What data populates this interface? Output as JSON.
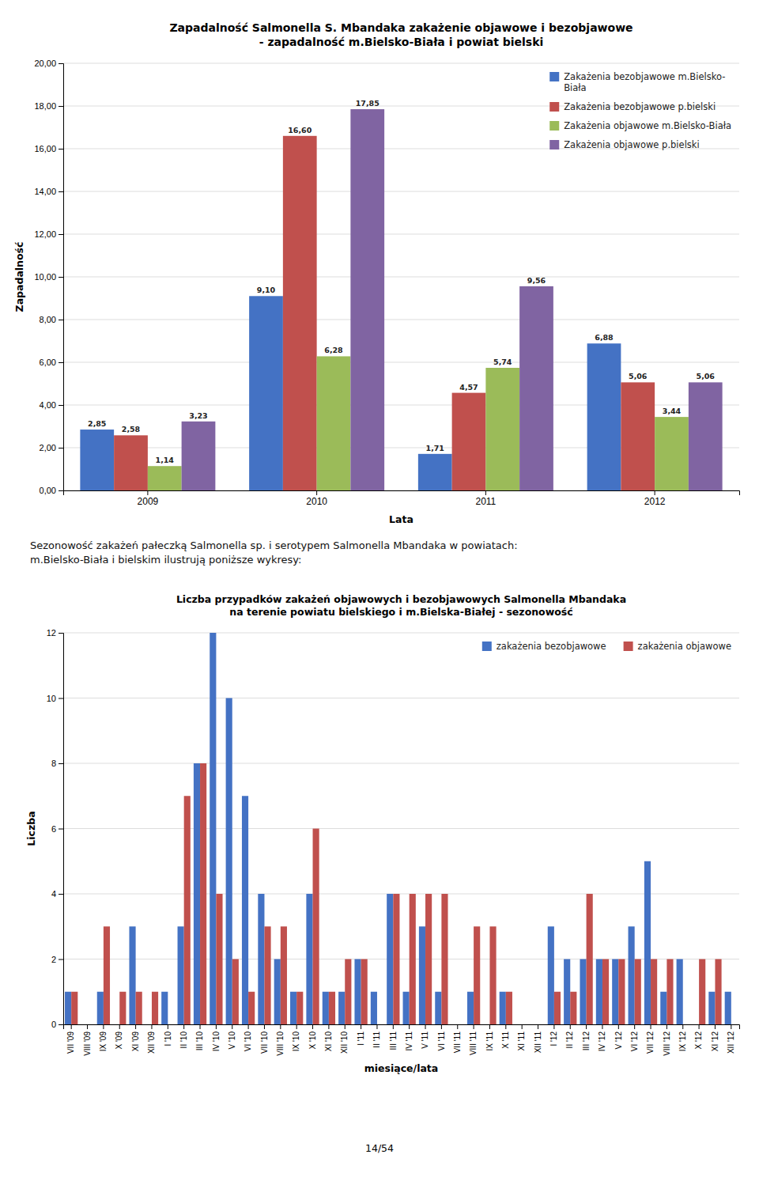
{
  "chart_data": [
    {
      "type": "bar",
      "title": "Zapadalność Salmonella S. Mbandaka zakażenie objawowe i bezobjawowe\n- zapadalność m.Bielsko-Biała i powiat bielski",
      "xlabel": "Lata",
      "ylabel": "Zapadalność",
      "categories": [
        "2009",
        "2010",
        "2011",
        "2012"
      ],
      "series": [
        {
          "name": "Zakażenia bezobjawowe m.Bielsko-\nBiała",
          "color": "#4472C4",
          "values": [
            2.85,
            9.1,
            1.71,
            6.88
          ],
          "value_labels": [
            "2,85",
            "9,10",
            "1,71",
            "6,88"
          ]
        },
        {
          "name": "Zakażenia bezobjawowe p.bielski",
          "color": "#C0504D",
          "values": [
            2.58,
            16.6,
            4.57,
            5.06
          ],
          "value_labels": [
            "2,58",
            "16,60",
            "4,57",
            "5,06"
          ]
        },
        {
          "name": "Zakażenia objawowe m.Bielsko-Biała",
          "color": "#9BBB59",
          "values": [
            1.14,
            6.28,
            5.74,
            3.44
          ],
          "value_labels": [
            "1,14",
            "6,28",
            "5,74",
            "3,44"
          ]
        },
        {
          "name": "Zakażenia objawowe p.bielski",
          "color": "#8064A2",
          "values": [
            3.23,
            17.85,
            9.56,
            5.06
          ],
          "value_labels": [
            "3,23",
            "17,85",
            "9,56",
            "5,06"
          ]
        }
      ],
      "ylim": [
        0,
        20
      ],
      "yticks": [
        {
          "value": 0,
          "label": "0,00"
        },
        {
          "value": 2,
          "label": "2,00"
        },
        {
          "value": 4,
          "label": "4,00"
        },
        {
          "value": 6,
          "label": "6,00"
        },
        {
          "value": 8,
          "label": "8,00"
        },
        {
          "value": 10,
          "label": "10,00"
        },
        {
          "value": 12,
          "label": "12,00"
        },
        {
          "value": 14,
          "label": "14,00"
        },
        {
          "value": 16,
          "label": "16,00"
        },
        {
          "value": 18,
          "label": "18,00"
        },
        {
          "value": 20,
          "label": "20,00"
        }
      ],
      "grid": true,
      "legend": "upper right",
      "data_labels": true
    },
    {
      "type": "bar",
      "title": "Liczba przypadków zakażeń objawowych i bezobjawowych Salmonella Mbandaka\nna terenie powiatu bielskiego i m.Bielska-Białej - sezonowość",
      "xlabel": "miesiące/lata",
      "ylabel": "Liczba",
      "categories": [
        "VII '09",
        "VIII '09",
        "IX '09",
        "X '09",
        "XI '09",
        "XII '09",
        "I '10",
        "II '10",
        "III '10",
        "IV '10",
        "V '10",
        "VI '10",
        "VII '10",
        "VIII '10",
        "IX '10",
        "X '10",
        "XI '10",
        "XII '10",
        "I '11",
        "II '11",
        "III '11",
        "IV '11",
        "V '11",
        "VI '11",
        "VII '11",
        "VIII '11",
        "IX '11",
        "X '11",
        "XI '11",
        "XII '11",
        "I '12",
        "II '12",
        "III '12",
        "IV '12",
        "V '12",
        "VI '12",
        "VII '12",
        "VIII '12",
        "IX '12",
        "X '12",
        "XI '12",
        "XII '12"
      ],
      "series": [
        {
          "name": "zakażenia bezobjawowe",
          "color": "#4472C4",
          "values": [
            1,
            0,
            1,
            0,
            3,
            0,
            1,
            3,
            8,
            12,
            10,
            7,
            4,
            2,
            1,
            4,
            1,
            1,
            2,
            1,
            4,
            1,
            3,
            1,
            0,
            1,
            0,
            1,
            0,
            0,
            3,
            2,
            2,
            2,
            2,
            3,
            5,
            1,
            2,
            0,
            1,
            1
          ]
        },
        {
          "name": "zakażenia objawowe",
          "color": "#C0504D",
          "values": [
            1,
            0,
            3,
            1,
            1,
            1,
            0,
            7,
            8,
            4,
            2,
            1,
            3,
            3,
            1,
            6,
            1,
            2,
            2,
            0,
            4,
            4,
            4,
            4,
            0,
            3,
            3,
            1,
            0,
            0,
            1,
            1,
            4,
            2,
            2,
            2,
            2,
            2,
            0,
            2,
            2,
            0
          ]
        }
      ],
      "ylim": [
        0,
        12
      ],
      "yticks": [
        0,
        2,
        4,
        6,
        8,
        10,
        12
      ],
      "grid": true,
      "legend": "upper right"
    }
  ],
  "annotations": [
    "Sezonowość zakażeń pałeczką Salmonella sp. i serotypem Salmonella Mbandaka w powiatach:\nm.Bielsko-Biała i bielskim ilustrują poniższe wykresy:",
    "14/54"
  ]
}
